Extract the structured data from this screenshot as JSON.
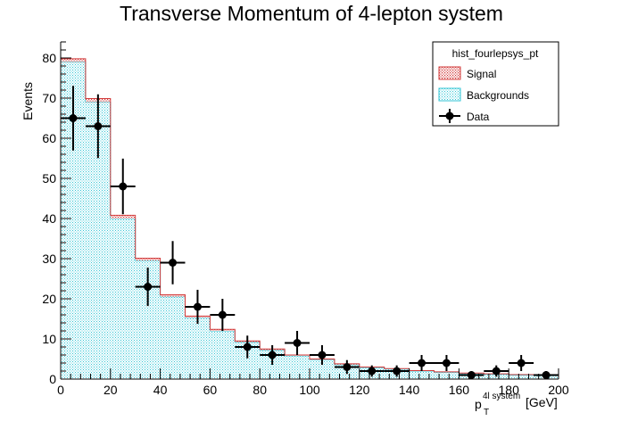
{
  "chart_data": {
    "type": "histogram",
    "title": "Transverse Momentum of 4-lepton system",
    "xlabel_main": "p",
    "xlabel_sub": "T",
    "xlabel_sup": "4l system",
    "xlabel_unit": "[GeV]",
    "ylabel": "Events",
    "xlim": [
      0,
      200
    ],
    "ylim": [
      0,
      84
    ],
    "x_ticks": [
      0,
      20,
      40,
      60,
      80,
      100,
      120,
      140,
      160,
      180,
      200
    ],
    "y_ticks": [
      0,
      10,
      20,
      30,
      40,
      50,
      60,
      70,
      80
    ],
    "bin_width": 10,
    "bin_edges": [
      0,
      10,
      20,
      30,
      40,
      50,
      60,
      70,
      80,
      90,
      100,
      110,
      120,
      130,
      140,
      150,
      160,
      170,
      180,
      190,
      200
    ],
    "legend": {
      "header": "hist_fourlepsys_pt",
      "entries": [
        "Signal",
        "Backgrounds",
        "Data"
      ],
      "position": "top-right"
    },
    "series": [
      {
        "name": "Backgrounds",
        "style": "stacked-fill",
        "color": "#33c6d6",
        "values": [
          79,
          69,
          40,
          29.5,
          20.5,
          15.3,
          12,
          9.2,
          7.2,
          5.8,
          4.8,
          3.6,
          2.9,
          2.5,
          2.0,
          1.7,
          1.4,
          1.2,
          1.0,
          0.9
        ]
      },
      {
        "name": "Signal",
        "style": "stacked-fill",
        "color": "#d23a3a",
        "values": [
          0.8,
          0.9,
          0.8,
          0.6,
          0.5,
          0.4,
          0.4,
          0.3,
          0.3,
          0.2,
          0.2,
          0.2,
          0.1,
          0.1,
          0.1,
          0.1,
          0.1,
          0.1,
          0.1,
          0.1
        ]
      },
      {
        "name": "Data",
        "style": "points-with-errors",
        "color": "#000000",
        "values": [
          65,
          63,
          48,
          23,
          29,
          18,
          16,
          8,
          6,
          9,
          6,
          3,
          2,
          2,
          4,
          4,
          1,
          2,
          4,
          1
        ]
      }
    ]
  }
}
